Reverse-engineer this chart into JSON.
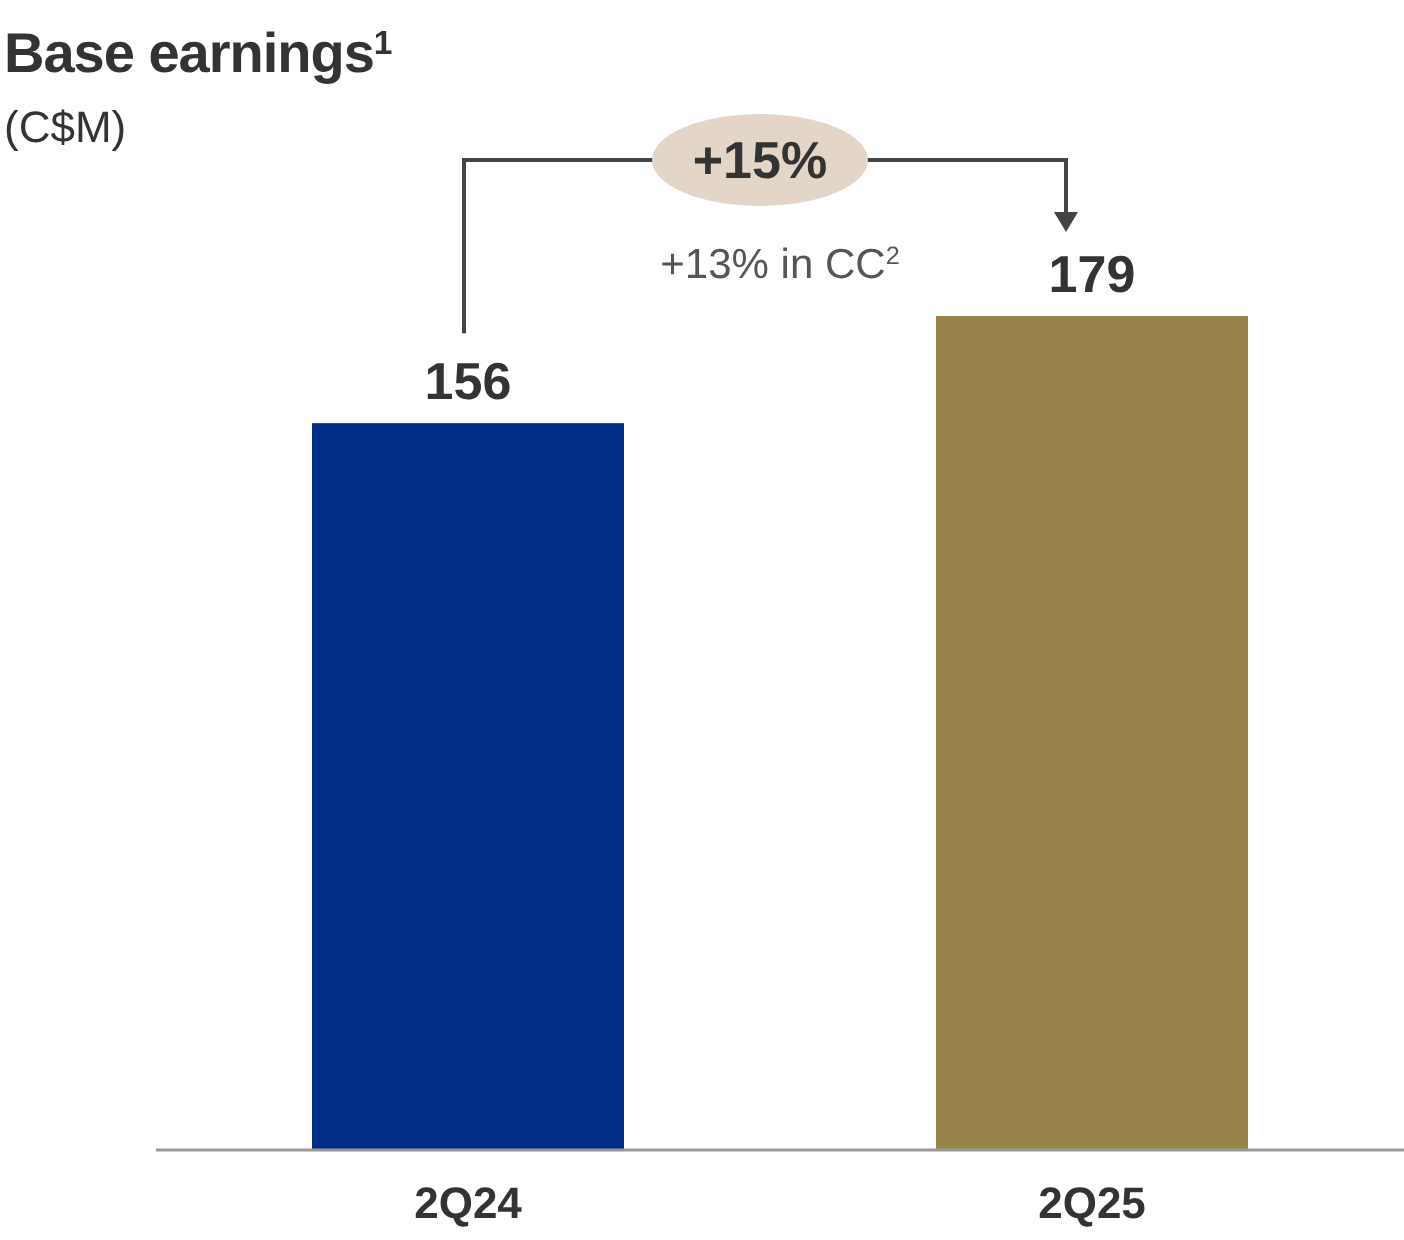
{
  "chart_data": {
    "type": "bar",
    "title": "Base earnings$^{1}$",
    "subtitle": "(C$M)",
    "categories": [
      "2Q24",
      "2Q25"
    ],
    "values": [
      156,
      179
    ],
    "colors": [
      "#002d86",
      "#98834a"
    ],
    "data_labels": true,
    "annotations": [
      "+15%",
      "+13% in CC$^{2}$"
    ]
  }
}
